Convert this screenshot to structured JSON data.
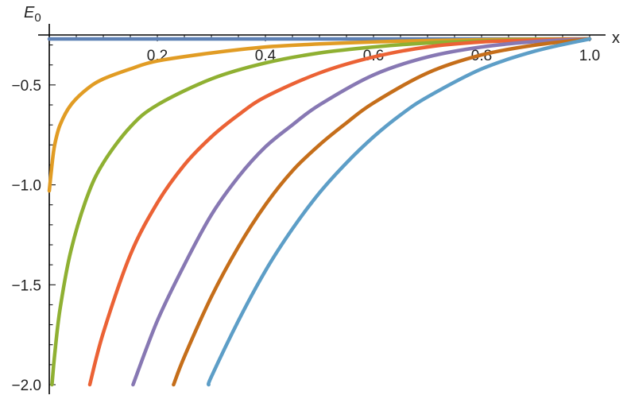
{
  "chart_data": {
    "type": "line",
    "title": "",
    "xlabel": "x",
    "ylabel_main": "E",
    "ylabel_sub": "0",
    "xlim": [
      0,
      1.0
    ],
    "ylim": [
      -2.0,
      -0.25
    ],
    "grid": false,
    "x_tick_labels": [
      "0.2",
      "0.4",
      "0.6",
      "0.8",
      "1.0"
    ],
    "x_tick_values": [
      0.2,
      0.4,
      0.6,
      0.8,
      1.0
    ],
    "y_tick_labels": [
      "-0.5",
      "-1.0",
      "-1.5",
      "-2.0"
    ],
    "y_tick_values": [
      -0.5,
      -1.0,
      -1.5,
      -2.0
    ],
    "series": [
      {
        "color": "#5E81B5",
        "x": [
          0,
          1.0
        ],
        "y": [
          -0.27,
          -0.27
        ]
      },
      {
        "color": "#E19C24",
        "x": [
          0.0,
          0.005,
          0.01,
          0.02,
          0.04,
          0.07,
          0.1,
          0.15,
          0.2,
          0.3,
          0.4,
          0.5,
          0.6,
          0.7,
          0.8,
          0.9,
          1.0
        ],
        "y": [
          -1.03,
          -0.9,
          -0.8,
          -0.7,
          -0.6,
          -0.52,
          -0.47,
          -0.42,
          -0.38,
          -0.34,
          -0.31,
          -0.295,
          -0.285,
          -0.278,
          -0.274,
          -0.271,
          -0.27
        ]
      },
      {
        "color": "#8FB032",
        "x": [
          0.005,
          0.01,
          0.02,
          0.04,
          0.07,
          0.1,
          0.15,
          0.2,
          0.3,
          0.4,
          0.5,
          0.6,
          0.7,
          0.8,
          0.9,
          1.0
        ],
        "y": [
          -2.0,
          -1.85,
          -1.62,
          -1.33,
          -1.06,
          -0.89,
          -0.71,
          -0.6,
          -0.47,
          -0.39,
          -0.34,
          -0.31,
          -0.29,
          -0.28,
          -0.273,
          -0.27
        ]
      },
      {
        "color": "#EB6235",
        "x": [
          0.075,
          0.1,
          0.15,
          0.2,
          0.25,
          0.3,
          0.35,
          0.4,
          0.5,
          0.6,
          0.7,
          0.8,
          0.9,
          1.0
        ],
        "y": [
          -2.0,
          -1.74,
          -1.35,
          -1.09,
          -0.9,
          -0.76,
          -0.65,
          -0.56,
          -0.44,
          -0.36,
          -0.31,
          -0.285,
          -0.275,
          -0.27
        ]
      },
      {
        "color": "#8778B3",
        "x": [
          0.155,
          0.2,
          0.25,
          0.3,
          0.35,
          0.4,
          0.45,
          0.5,
          0.6,
          0.7,
          0.8,
          0.9,
          1.0
        ],
        "y": [
          -2.0,
          -1.68,
          -1.4,
          -1.15,
          -0.96,
          -0.81,
          -0.7,
          -0.6,
          -0.45,
          -0.36,
          -0.31,
          -0.283,
          -0.27
        ]
      },
      {
        "color": "#C56E1A",
        "x": [
          0.23,
          0.25,
          0.3,
          0.35,
          0.4,
          0.45,
          0.5,
          0.55,
          0.6,
          0.7,
          0.8,
          0.9,
          1.0
        ],
        "y": [
          -2.0,
          -1.86,
          -1.56,
          -1.31,
          -1.1,
          -0.93,
          -0.8,
          -0.69,
          -0.59,
          -0.44,
          -0.35,
          -0.3,
          -0.27
        ]
      },
      {
        "color": "#5D9EC7",
        "x": [
          0.295,
          0.3,
          0.35,
          0.4,
          0.45,
          0.5,
          0.55,
          0.6,
          0.65,
          0.7,
          0.8,
          0.9,
          1.0
        ],
        "y": [
          -2.0,
          -1.96,
          -1.68,
          -1.43,
          -1.22,
          -1.04,
          -0.89,
          -0.76,
          -0.65,
          -0.56,
          -0.42,
          -0.33,
          -0.27
        ]
      }
    ]
  }
}
